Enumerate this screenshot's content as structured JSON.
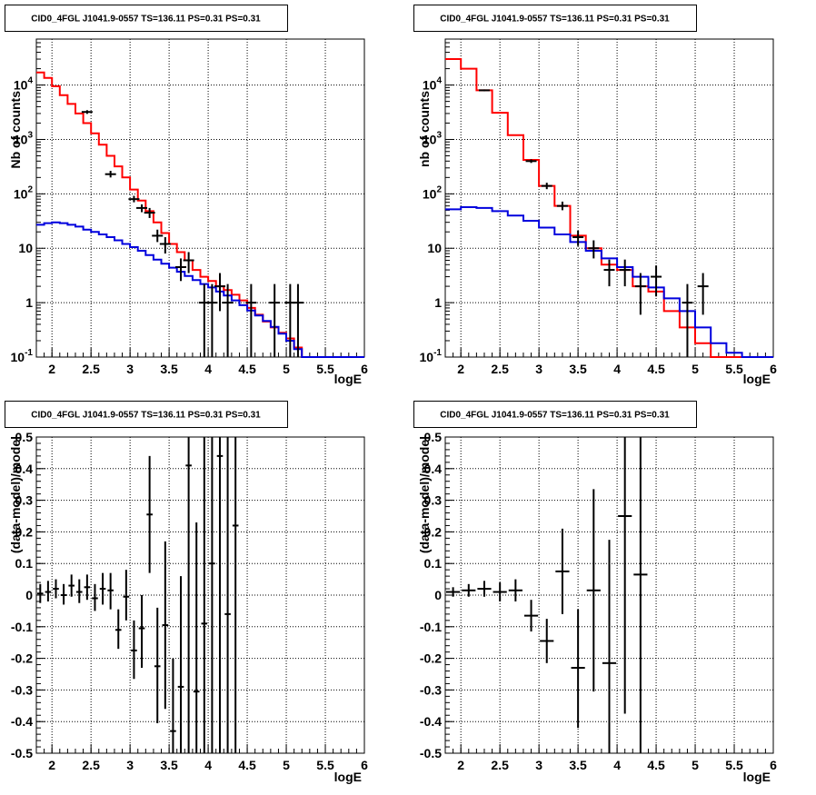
{
  "chart_data": [
    {
      "type": "line",
      "title": "CID0_4FGL J1041.9-0557 TS=136.11 PS=0.31 PS=0.31",
      "xlabel": "logE",
      "ylabel": "Nb of counts",
      "xlim": [
        1.8,
        6.0
      ],
      "ylim": [
        0.1,
        70000
      ],
      "yscale": "log",
      "grid": true,
      "xticks": [
        "2",
        "2.5",
        "3",
        "3.5",
        "4",
        "4.5",
        "5",
        "5.5",
        "6"
      ],
      "yticks": [
        "10$^{-1}$",
        "1",
        "10",
        "10$^{2}$",
        "10$^{3}$",
        "10$^{4}$"
      ],
      "series": [
        {
          "color": "#ff0000",
          "kind": "histogram",
          "edges": [
            1.8,
            1.9,
            2.0,
            2.1,
            2.2,
            2.3,
            2.4,
            2.5,
            2.6,
            2.7,
            2.8,
            2.9,
            3.0,
            3.1,
            3.2,
            3.3,
            3.4,
            3.5,
            3.6,
            3.7,
            3.8,
            3.9,
            4.0,
            4.1,
            4.2,
            4.3,
            4.4,
            4.5,
            4.6,
            4.7,
            4.8,
            4.9,
            5.0,
            5.1,
            5.2,
            5.3,
            5.4,
            5.5,
            5.6,
            5.7,
            5.8,
            5.9,
            6.0
          ],
          "values": [
            17000,
            13500,
            9500,
            6500,
            4500,
            3000,
            2000,
            1300,
            800,
            500,
            320,
            200,
            120,
            75,
            48,
            30,
            19,
            12,
            8.5,
            6,
            4,
            3,
            2.5,
            2,
            1.7,
            1.4,
            1.1,
            0.8,
            0.6,
            0.45,
            0.35,
            0.28,
            0.22,
            0.15,
            0.1,
            0.1,
            0.1,
            0.1,
            0.1,
            0.1,
            0.1,
            0.1
          ]
        },
        {
          "color": "#0000dd",
          "kind": "histogram",
          "edges": [
            1.8,
            1.9,
            2.0,
            2.1,
            2.2,
            2.3,
            2.4,
            2.5,
            2.6,
            2.7,
            2.8,
            2.9,
            3.0,
            3.1,
            3.2,
            3.3,
            3.4,
            3.5,
            3.6,
            3.7,
            3.8,
            3.9,
            4.0,
            4.1,
            4.2,
            4.3,
            4.4,
            4.5,
            4.6,
            4.7,
            4.8,
            4.9,
            5.0,
            5.1,
            5.2,
            5.3,
            5.4,
            5.5,
            5.6,
            5.7,
            5.8,
            5.9,
            6.0
          ],
          "values": [
            27,
            29,
            30,
            29,
            27,
            25,
            22,
            20,
            18,
            16,
            14,
            12,
            10.5,
            9,
            7.5,
            6.2,
            5.2,
            4.4,
            3.7,
            3.1,
            2.6,
            2.2,
            1.9,
            1.6,
            1.35,
            1.1,
            0.9,
            0.72,
            0.58,
            0.46,
            0.36,
            0.27,
            0.2,
            0.14,
            0.1,
            0.1,
            0.1,
            0.1,
            0.1,
            0.1,
            0.1,
            0.1
          ]
        },
        {
          "color": "#000000",
          "kind": "errorbars",
          "points": [
            {
              "x": 2.45,
              "y": 3200,
              "ylo": 2950,
              "yhi": 3450
            },
            {
              "x": 2.75,
              "y": 230,
              "ylo": 200,
              "yhi": 265
            },
            {
              "x": 3.05,
              "y": 80,
              "ylo": 70,
              "yhi": 92
            },
            {
              "x": 3.15,
              "y": 55,
              "ylo": 46,
              "yhi": 64
            },
            {
              "x": 3.25,
              "y": 45,
              "ylo": 36,
              "yhi": 55
            },
            {
              "x": 3.35,
              "y": 17,
              "ylo": 13,
              "yhi": 22
            },
            {
              "x": 3.45,
              "y": 12,
              "ylo": 8,
              "yhi": 16
            },
            {
              "x": 3.65,
              "y": 4.5,
              "ylo": 2.5,
              "yhi": 6.5
            },
            {
              "x": 3.75,
              "y": 6,
              "ylo": 3.5,
              "yhi": 8.5
            },
            {
              "x": 3.95,
              "y": 1,
              "ylo": 0.1,
              "yhi": 2.2
            },
            {
              "x": 4.05,
              "y": 1,
              "ylo": 0.1,
              "yhi": 2.2
            },
            {
              "x": 4.15,
              "y": 2,
              "ylo": 0.7,
              "yhi": 3.5
            },
            {
              "x": 4.25,
              "y": 1,
              "ylo": 0.1,
              "yhi": 2.2
            },
            {
              "x": 4.55,
              "y": 1,
              "ylo": 0.1,
              "yhi": 2.2
            },
            {
              "x": 4.85,
              "y": 1,
              "ylo": 0.1,
              "yhi": 2.2
            },
            {
              "x": 5.05,
              "y": 1,
              "ylo": 0.1,
              "yhi": 2.2
            },
            {
              "x": 5.15,
              "y": 1,
              "ylo": 0.1,
              "yhi": 2.2
            }
          ]
        }
      ]
    },
    {
      "type": "line",
      "title": "CID0_4FGL J1041.9-0557 TS=136.11 PS=0.31 PS=0.31",
      "xlabel": "logE",
      "ylabel": "nb of counts",
      "xlim": [
        1.8,
        6.0
      ],
      "ylim": [
        0.1,
        70000
      ],
      "yscale": "log",
      "grid": true,
      "xticks": [
        "2",
        "2.5",
        "3",
        "3.5",
        "4",
        "4.5",
        "5",
        "5.5",
        "6"
      ],
      "yticks": [
        "10$^{-1}$",
        "1",
        "10",
        "10$^{2}$",
        "10$^{3}$",
        "10$^{4}$"
      ],
      "series": [
        {
          "color": "#ff0000",
          "kind": "histogram",
          "edges": [
            1.8,
            2.0,
            2.2,
            2.4,
            2.6,
            2.8,
            3.0,
            3.2,
            3.4,
            3.6,
            3.8,
            4.0,
            4.2,
            4.4,
            4.6,
            4.8,
            5.0,
            5.2,
            5.4,
            5.6,
            5.8,
            6.0
          ],
          "values": [
            30000,
            20000,
            8000,
            3100,
            1200,
            420,
            140,
            60,
            17,
            10,
            5,
            4,
            2,
            1.6,
            0.7,
            0.35,
            0.18,
            0.1,
            0.1,
            0.1,
            0.1
          ]
        },
        {
          "color": "#0000dd",
          "kind": "histogram",
          "edges": [
            1.8,
            2.0,
            2.2,
            2.4,
            2.6,
            2.8,
            3.0,
            3.2,
            3.4,
            3.6,
            3.8,
            4.0,
            4.2,
            4.4,
            4.6,
            4.8,
            5.0,
            5.2,
            5.4,
            5.6,
            5.8,
            6.0
          ],
          "values": [
            52,
            57,
            55,
            48,
            40,
            32,
            24,
            18,
            13,
            9,
            6.5,
            4.5,
            3,
            1.9,
            1.2,
            0.7,
            0.35,
            0.18,
            0.12,
            0.1,
            0.1
          ]
        },
        {
          "color": "#000000",
          "kind": "errorbars",
          "points": [
            {
              "x": 2.3,
              "y": 8000,
              "ylo": 7700,
              "yhi": 8300
            },
            {
              "x": 2.9,
              "y": 400,
              "ylo": 370,
              "yhi": 430
            },
            {
              "x": 3.1,
              "y": 140,
              "ylo": 122,
              "yhi": 160
            },
            {
              "x": 3.3,
              "y": 60,
              "ylo": 50,
              "yhi": 72
            },
            {
              "x": 3.5,
              "y": 16,
              "ylo": 11,
              "yhi": 21
            },
            {
              "x": 3.7,
              "y": 10,
              "ylo": 6.5,
              "yhi": 14
            },
            {
              "x": 3.9,
              "y": 4,
              "ylo": 2,
              "yhi": 6.2
            },
            {
              "x": 4.1,
              "y": 4,
              "ylo": 2,
              "yhi": 6.2
            },
            {
              "x": 4.3,
              "y": 2,
              "ylo": 0.6,
              "yhi": 3.5
            },
            {
              "x": 4.5,
              "y": 3,
              "ylo": 1.3,
              "yhi": 4.8
            },
            {
              "x": 4.9,
              "y": 1,
              "ylo": 0.1,
              "yhi": 2.2
            },
            {
              "x": 5.1,
              "y": 2,
              "ylo": 0.6,
              "yhi": 3.5
            }
          ]
        }
      ]
    },
    {
      "type": "scatter",
      "title": "CID0_4FGL J1041.9-0557 TS=136.11 PS=0.31 PS=0.31",
      "xlabel": "logE",
      "ylabel": "(data-model)/model",
      "xlim": [
        1.8,
        6.0
      ],
      "ylim": [
        -0.5,
        0.5
      ],
      "grid": true,
      "xticks": [
        "2",
        "2.5",
        "3",
        "3.5",
        "4",
        "4.5",
        "5",
        "5.5",
        "6"
      ],
      "yticks": [
        "-0.5",
        "-0.4",
        "-0.3",
        "-0.2",
        "-0.1",
        "0",
        "0.1",
        "0.2",
        "0.3",
        "0.4",
        "0.5"
      ],
      "halfwidth": 0.05,
      "points": [
        {
          "x": 1.85,
          "y": 0.005,
          "ylo": -0.025,
          "yhi": 0.035
        },
        {
          "x": 1.95,
          "y": 0.01,
          "ylo": -0.02,
          "yhi": 0.045
        },
        {
          "x": 2.05,
          "y": 0.02,
          "ylo": -0.01,
          "yhi": 0.05
        },
        {
          "x": 2.15,
          "y": 0.0,
          "ylo": -0.03,
          "yhi": 0.035
        },
        {
          "x": 2.25,
          "y": 0.03,
          "ylo": -0.005,
          "yhi": 0.065
        },
        {
          "x": 2.35,
          "y": 0.01,
          "ylo": -0.025,
          "yhi": 0.05
        },
        {
          "x": 2.45,
          "y": 0.025,
          "ylo": -0.015,
          "yhi": 0.065
        },
        {
          "x": 2.55,
          "y": -0.01,
          "ylo": -0.05,
          "yhi": 0.035
        },
        {
          "x": 2.65,
          "y": 0.02,
          "ylo": -0.03,
          "yhi": 0.07
        },
        {
          "x": 2.75,
          "y": 0.015,
          "ylo": -0.045,
          "yhi": 0.07
        },
        {
          "x": 2.85,
          "y": -0.11,
          "ylo": -0.17,
          "yhi": -0.045
        },
        {
          "x": 2.95,
          "y": -0.005,
          "ylo": -0.08,
          "yhi": 0.08
        },
        {
          "x": 3.05,
          "y": -0.175,
          "ylo": -0.265,
          "yhi": -0.08
        },
        {
          "x": 3.15,
          "y": -0.105,
          "ylo": -0.23,
          "yhi": 0.0
        },
        {
          "x": 3.25,
          "y": 0.255,
          "ylo": 0.07,
          "yhi": 0.44
        },
        {
          "x": 3.35,
          "y": -0.225,
          "ylo": -0.405,
          "yhi": -0.04
        },
        {
          "x": 3.45,
          "y": -0.095,
          "ylo": -0.36,
          "yhi": 0.17
        },
        {
          "x": 3.55,
          "y": -0.43,
          "ylo": -0.5,
          "yhi": -0.2
        },
        {
          "x": 3.65,
          "y": -0.29,
          "ylo": -0.5,
          "yhi": 0.06
        },
        {
          "x": 3.75,
          "y": 0.41,
          "ylo": -0.5,
          "yhi": 0.5
        },
        {
          "x": 3.85,
          "y": -0.305,
          "ylo": -0.5,
          "yhi": 0.23
        },
        {
          "x": 3.95,
          "y": -0.09,
          "ylo": -0.5,
          "yhi": 0.5
        },
        {
          "x": 4.05,
          "y": 0.1,
          "ylo": -0.5,
          "yhi": 0.5
        },
        {
          "x": 4.15,
          "y": 0.44,
          "ylo": -0.5,
          "yhi": 0.5
        },
        {
          "x": 4.25,
          "y": -0.06,
          "ylo": -0.5,
          "yhi": 0.5
        },
        {
          "x": 4.35,
          "y": 0.22,
          "ylo": -0.5,
          "yhi": 0.5
        }
      ]
    },
    {
      "type": "scatter",
      "title": "CID0_4FGL J1041.9-0557 TS=136.11 PS=0.31 PS=0.31",
      "xlabel": "logE",
      "ylabel": "(data-model)/model",
      "xlim": [
        1.8,
        6.0
      ],
      "ylim": [
        -0.5,
        0.5
      ],
      "grid": true,
      "xticks": [
        "2",
        "2.5",
        "3",
        "3.5",
        "4",
        "4.5",
        "5",
        "5.5",
        "6"
      ],
      "yticks": [
        "-0.5",
        "-0.4",
        "-0.3",
        "-0.2",
        "-0.1",
        "0",
        "0.1",
        "0.2",
        "0.3",
        "0.4",
        "0.5"
      ],
      "halfwidth": 0.1,
      "points": [
        {
          "x": 1.9,
          "y": 0.01,
          "ylo": -0.005,
          "yhi": 0.025
        },
        {
          "x": 2.1,
          "y": 0.015,
          "ylo": -0.005,
          "yhi": 0.035
        },
        {
          "x": 2.3,
          "y": 0.02,
          "ylo": -0.005,
          "yhi": 0.045
        },
        {
          "x": 2.5,
          "y": 0.01,
          "ylo": -0.02,
          "yhi": 0.04
        },
        {
          "x": 2.7,
          "y": 0.015,
          "ylo": -0.02,
          "yhi": 0.05
        },
        {
          "x": 2.9,
          "y": -0.065,
          "ylo": -0.115,
          "yhi": -0.015
        },
        {
          "x": 3.1,
          "y": -0.145,
          "ylo": -0.215,
          "yhi": -0.075
        },
        {
          "x": 3.3,
          "y": 0.075,
          "ylo": -0.06,
          "yhi": 0.21
        },
        {
          "x": 3.5,
          "y": -0.23,
          "ylo": -0.42,
          "yhi": -0.045
        },
        {
          "x": 3.7,
          "y": 0.015,
          "ylo": -0.305,
          "yhi": 0.335
        },
        {
          "x": 3.9,
          "y": -0.215,
          "ylo": -0.5,
          "yhi": 0.175
        },
        {
          "x": 4.1,
          "y": 0.25,
          "ylo": -0.375,
          "yhi": 0.5
        },
        {
          "x": 4.3,
          "y": 0.065,
          "ylo": -0.5,
          "yhi": 0.5
        }
      ]
    }
  ],
  "colors": {
    "model_total": "#ff0000",
    "model_background": "#0000dd",
    "data": "#000000"
  }
}
